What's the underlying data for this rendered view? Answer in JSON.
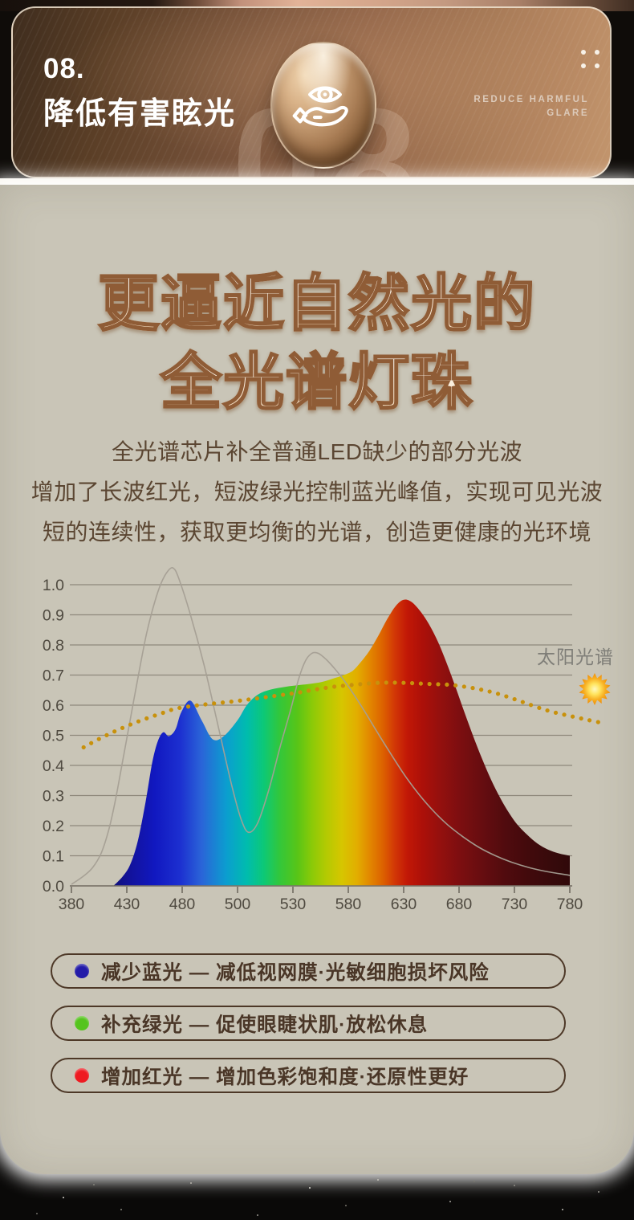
{
  "header": {
    "number": "08.",
    "title": "降低有害眩光",
    "subtitle_lines": [
      "REDUCE HARMFUL",
      "GLARE"
    ],
    "watermark": "08",
    "badge_icon": "hand-holding-eye",
    "colors": {
      "grad_left": "#3f2d1e",
      "grad_right": "#c2956d",
      "text": "#ffffff",
      "subtitle": "#dccaba"
    }
  },
  "main": {
    "title_lines": [
      "更逼近自然光的",
      "全光谱灯珠"
    ],
    "paragraph_lines": [
      "全光谱芯片补全普通LED缺少的部分光波",
      "增加了长波红光，短波绿光控制蓝光峰值，实现可见光波",
      "短的连续性，获取更均衡的光谱，创造更健康的光环境"
    ],
    "colors": {
      "card_bg": "#c9c5b7",
      "title_fill_top": "#fffef9",
      "title_fill_bottom": "#f5dcbc",
      "title_stroke": "#8f5c36",
      "paragraph": "#5b4632"
    }
  },
  "chart_data": {
    "type": "area",
    "x_axis_note": "wavelength in nm; tick marks evenly spaced (non-linear scale)",
    "x_ticks": [
      380,
      430,
      480,
      500,
      530,
      580,
      630,
      680,
      730,
      780
    ],
    "y_ticks": [
      0.0,
      0.1,
      0.2,
      0.3,
      0.4,
      0.5,
      0.6,
      0.7,
      0.8,
      0.9,
      1.0
    ],
    "ylim": [
      0,
      1.05
    ],
    "grid": "horizontal",
    "annotation": {
      "label": "太阳光谱",
      "icon": "sun"
    },
    "colors": {
      "grid": "#8f897c",
      "axis_text": "#4f4a40",
      "annotation_text": "#7f7e78",
      "sun_outer": "#ee8c07",
      "sun_inner": "#fff9c0"
    },
    "series": [
      {
        "name": "full-spectrum-led",
        "style": "area-rainbow",
        "points": [
          [
            418,
            0
          ],
          [
            426,
            0.03
          ],
          [
            433,
            0.07
          ],
          [
            440,
            0.15
          ],
          [
            447,
            0.28
          ],
          [
            453,
            0.41
          ],
          [
            458,
            0.48
          ],
          [
            463,
            0.51
          ],
          [
            468,
            0.497
          ],
          [
            474,
            0.52
          ],
          [
            479,
            0.575
          ],
          [
            483,
            0.615
          ],
          [
            487,
            0.55
          ],
          [
            491,
            0.487
          ],
          [
            495,
            0.497
          ],
          [
            500,
            0.55
          ],
          [
            505,
            0.6
          ],
          [
            511,
            0.635
          ],
          [
            518,
            0.652
          ],
          [
            526,
            0.661
          ],
          [
            536,
            0.667
          ],
          [
            546,
            0.671
          ],
          [
            556,
            0.677
          ],
          [
            566,
            0.688
          ],
          [
            576,
            0.7
          ],
          [
            584,
            0.714
          ],
          [
            591,
            0.742
          ],
          [
            599,
            0.78
          ],
          [
            607,
            0.83
          ],
          [
            615,
            0.885
          ],
          [
            623,
            0.93
          ],
          [
            630,
            0.95
          ],
          [
            637,
            0.943
          ],
          [
            645,
            0.912
          ],
          [
            653,
            0.868
          ],
          [
            661,
            0.81
          ],
          [
            669,
            0.738
          ],
          [
            677,
            0.658
          ],
          [
            685,
            0.575
          ],
          [
            693,
            0.495
          ],
          [
            701,
            0.42
          ],
          [
            709,
            0.352
          ],
          [
            717,
            0.293
          ],
          [
            725,
            0.243
          ],
          [
            733,
            0.202
          ],
          [
            742,
            0.168
          ],
          [
            751,
            0.14
          ],
          [
            760,
            0.121
          ],
          [
            770,
            0.108
          ],
          [
            780,
            0.1
          ]
        ]
      },
      {
        "name": "ordinary-led",
        "style": "thin-line",
        "color": "#a59f94",
        "points": [
          [
            380,
            0.005
          ],
          [
            390,
            0.03
          ],
          [
            399,
            0.06
          ],
          [
            407,
            0.11
          ],
          [
            414,
            0.19
          ],
          [
            420,
            0.29
          ],
          [
            427,
            0.43
          ],
          [
            434,
            0.57
          ],
          [
            441,
            0.71
          ],
          [
            448,
            0.84
          ],
          [
            455,
            0.94
          ],
          [
            461,
            1.005
          ],
          [
            467,
            1.045
          ],
          [
            472,
            1.055
          ],
          [
            477,
            1.02
          ],
          [
            483,
            0.9
          ],
          [
            488,
            0.73
          ],
          [
            493,
            0.53
          ],
          [
            498,
            0.33
          ],
          [
            502,
            0.22
          ],
          [
            506,
            0.178
          ],
          [
            511,
            0.21
          ],
          [
            517,
            0.32
          ],
          [
            523,
            0.46
          ],
          [
            529,
            0.59
          ],
          [
            535,
            0.685
          ],
          [
            541,
            0.745
          ],
          [
            547,
            0.772
          ],
          [
            553,
            0.772
          ],
          [
            560,
            0.752
          ],
          [
            568,
            0.72
          ],
          [
            577,
            0.678
          ],
          [
            586,
            0.63
          ],
          [
            596,
            0.572
          ],
          [
            607,
            0.505
          ],
          [
            619,
            0.435
          ],
          [
            631,
            0.367
          ],
          [
            644,
            0.303
          ],
          [
            657,
            0.248
          ],
          [
            670,
            0.202
          ],
          [
            684,
            0.162
          ],
          [
            698,
            0.128
          ],
          [
            713,
            0.1
          ],
          [
            728,
            0.078
          ],
          [
            744,
            0.06
          ],
          [
            760,
            0.047
          ],
          [
            780,
            0.035
          ]
        ]
      },
      {
        "name": "sun-spectrum",
        "style": "dotted",
        "color": "#c8910c",
        "points": [
          [
            391,
            0.46
          ],
          [
            403,
            0.484
          ],
          [
            415,
            0.506
          ],
          [
            427,
            0.526
          ],
          [
            439,
            0.544
          ],
          [
            451,
            0.56
          ],
          [
            463,
            0.575
          ],
          [
            475,
            0.589
          ],
          [
            487,
            0.601
          ],
          [
            499,
            0.613
          ],
          [
            511,
            0.623
          ],
          [
            523,
            0.633
          ],
          [
            535,
            0.642
          ],
          [
            547,
            0.65
          ],
          [
            559,
            0.657
          ],
          [
            571,
            0.663
          ],
          [
            583,
            0.667
          ],
          [
            595,
            0.671
          ],
          [
            607,
            0.674
          ],
          [
            619,
            0.675
          ],
          [
            631,
            0.674
          ],
          [
            643,
            0.672
          ],
          [
            656,
            0.67
          ],
          [
            670,
            0.668
          ],
          [
            684,
            0.662
          ],
          [
            698,
            0.653
          ],
          [
            712,
            0.641
          ],
          [
            726,
            0.625
          ],
          [
            740,
            0.607
          ],
          [
            754,
            0.589
          ],
          [
            766,
            0.576
          ],
          [
            778,
            0.566
          ],
          [
            790,
            0.556
          ],
          [
            800,
            0.548
          ],
          [
            812,
            0.539
          ]
        ]
      }
    ],
    "rainbow_stops": [
      [
        418,
        "#10107a"
      ],
      [
        432,
        "#12129a"
      ],
      [
        455,
        "#1118c0"
      ],
      [
        478,
        "#1c2fd0"
      ],
      [
        487,
        "#2a64d8"
      ],
      [
        496,
        "#0b9ecf"
      ],
      [
        505,
        "#00bcae"
      ],
      [
        514,
        "#0cc878"
      ],
      [
        523,
        "#33c73a"
      ],
      [
        534,
        "#58c517"
      ],
      [
        547,
        "#8aca08"
      ],
      [
        560,
        "#b3ca02"
      ],
      [
        574,
        "#d6c600"
      ],
      [
        588,
        "#e2ad00"
      ],
      [
        600,
        "#e28500"
      ],
      [
        612,
        "#dc5f00"
      ],
      [
        622,
        "#d23706"
      ],
      [
        633,
        "#c21806"
      ],
      [
        647,
        "#ac1009"
      ],
      [
        663,
        "#94100e"
      ],
      [
        681,
        "#7c0e10"
      ],
      [
        701,
        "#660d10"
      ],
      [
        721,
        "#510b0e"
      ],
      [
        744,
        "#410a0c"
      ],
      [
        764,
        "#370a0b"
      ],
      [
        780,
        "#30090a"
      ]
    ]
  },
  "legend": {
    "items": [
      {
        "dot_color": "#231ba8",
        "label": "减少蓝光 — 减低视网膜·光敏细胞损坏风险"
      },
      {
        "dot_color": "#55c41e",
        "label": "补充绿光 — 促使眼睫状肌·放松休息"
      },
      {
        "dot_color": "#ee1b22",
        "label": "增加红光 — 增加色彩饱和度·还原性更好"
      }
    ]
  }
}
